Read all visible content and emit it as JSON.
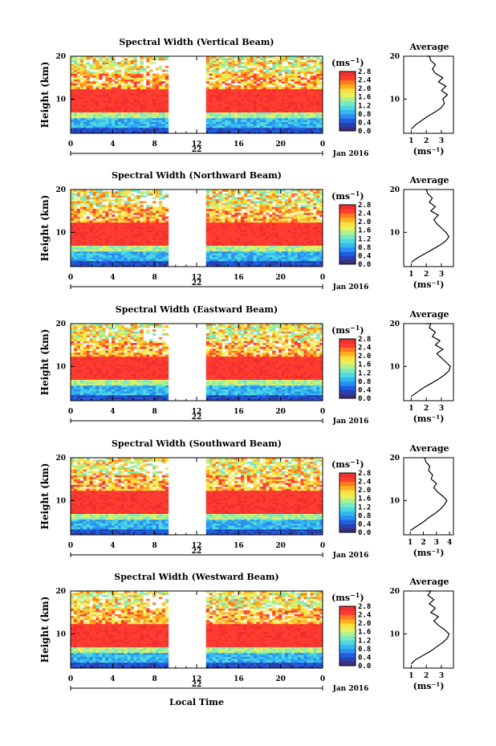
{
  "figure": {
    "xlabel": "Local Time",
    "date_label": "Jan 2016",
    "xticks": [
      "0",
      "4",
      "8",
      "12",
      "16",
      "20",
      "0"
    ],
    "day_label": "22",
    "colorbar_unit": "(ms",
    "colorbar_unit_exp": "−1",
    "colorbar_unit_close": ")",
    "colorbar_ticks": [
      "0.0",
      "0.4",
      "0.8",
      "1.2",
      "1.6",
      "2.0",
      "2.4",
      "2.8"
    ],
    "ylabel": "Height (km)",
    "yticks": [
      "20",
      "10"
    ],
    "avg_title": "Average",
    "colors": [
      "#3b2f7a",
      "#2a3fb0",
      "#1e5fe0",
      "#2a8ff0",
      "#34b8f0",
      "#4fd8e0",
      "#7ae8c0",
      "#b0f090",
      "#e6f060",
      "#ffe040",
      "#ffb020",
      "#ff7a20",
      "#ff3c30",
      "#f03030"
    ]
  },
  "chart_data": [
    {
      "type": "heatmap",
      "title": "Spectral Width (Vertical Beam)",
      "xlabel": "Local Time",
      "ylabel": "Height (km)",
      "xlim": [
        0,
        24
      ],
      "ylim": [
        2,
        20
      ],
      "data_gap_hours": [
        9.3,
        12.8
      ],
      "colorbar_range": [
        0.0,
        2.8
      ],
      "average_profile": {
        "xlabel": "(ms⁻¹)",
        "xticks": [
          "1",
          "2",
          "3"
        ],
        "xlim": [
          0.5,
          3.8
        ],
        "x": [
          1.0,
          1.3,
          1.7,
          2.1,
          2.6,
          3.0,
          3.2,
          3.1,
          3.4,
          3.0,
          3.3,
          2.8,
          3.1,
          2.6,
          2.4,
          2.6,
          2.3,
          2.2,
          2.0
        ],
        "y": [
          3,
          4,
          5,
          6,
          7,
          8,
          9,
          10,
          11,
          12,
          13,
          14,
          15,
          16,
          17,
          18,
          19,
          20,
          20
        ]
      }
    },
    {
      "type": "heatmap",
      "title": "Spectral Width (Northward Beam)",
      "xlabel": "Local Time",
      "ylabel": "Height (km)",
      "xlim": [
        0,
        24
      ],
      "ylim": [
        2,
        20
      ],
      "data_gap_hours": [
        9.3,
        12.8
      ],
      "colorbar_range": [
        0.0,
        2.8
      ],
      "average_profile": {
        "xlabel": "(ms⁻¹)",
        "xticks": [
          "1",
          "2",
          "3"
        ],
        "xlim": [
          0.5,
          3.8
        ],
        "x": [
          1.0,
          1.4,
          1.9,
          2.4,
          2.9,
          3.3,
          3.5,
          3.3,
          3.0,
          2.7,
          2.5,
          2.8,
          2.3,
          2.6,
          2.2,
          2.4,
          2.1,
          2.0,
          1.9
        ],
        "y": [
          3,
          4,
          5,
          6,
          7,
          8,
          9,
          10,
          11,
          12,
          13,
          14,
          15,
          16,
          17,
          18,
          19,
          20,
          20
        ]
      }
    },
    {
      "type": "heatmap",
      "title": "Spectral Width (Eastward Beam)",
      "xlabel": "Local Time",
      "ylabel": "Height (km)",
      "xlim": [
        0,
        24
      ],
      "ylim": [
        2,
        20
      ],
      "data_gap_hours": [
        9.3,
        12.8
      ],
      "colorbar_range": [
        0.0,
        2.8
      ],
      "average_profile": {
        "xlabel": "(ms⁻¹)",
        "xticks": [
          "1",
          "2",
          "3"
        ],
        "xlim": [
          0.5,
          3.8
        ],
        "x": [
          1.0,
          1.4,
          1.8,
          2.3,
          2.8,
          3.2,
          3.5,
          3.6,
          3.3,
          3.0,
          2.7,
          3.1,
          2.6,
          2.9,
          2.4,
          2.6,
          2.2,
          2.3,
          2.0
        ],
        "y": [
          3,
          4,
          5,
          6,
          7,
          8,
          9,
          10,
          11,
          12,
          13,
          14,
          15,
          16,
          17,
          18,
          19,
          20,
          20
        ]
      }
    },
    {
      "type": "heatmap",
      "title": "Spectral Width (Southward Beam)",
      "xlabel": "Local Time",
      "ylabel": "Height (km)",
      "xlim": [
        0,
        24
      ],
      "ylim": [
        2,
        20
      ],
      "data_gap_hours": [
        9.3,
        12.8
      ],
      "colorbar_range": [
        0.0,
        2.8
      ],
      "average_profile": {
        "xlabel": "(ms⁻¹)",
        "xticks": [
          "1",
          "2",
          "3",
          "4"
        ],
        "xlim": [
          0.5,
          4.3
        ],
        "x": [
          1.0,
          1.5,
          2.0,
          2.4,
          2.9,
          3.3,
          3.6,
          3.8,
          3.5,
          3.1,
          2.8,
          3.0,
          2.6,
          2.7,
          2.4,
          2.5,
          2.2,
          2.1,
          2.0
        ],
        "y": [
          3,
          4,
          5,
          6,
          7,
          8,
          9,
          10,
          11,
          12,
          13,
          14,
          15,
          16,
          17,
          18,
          19,
          20,
          20
        ]
      }
    },
    {
      "type": "heatmap",
      "title": "Spectral Width (Westward Beam)",
      "xlabel": "Local Time",
      "ylabel": "Height (km)",
      "xlim": [
        0,
        24
      ],
      "ylim": [
        2,
        20
      ],
      "data_gap_hours": [
        9.3,
        12.8
      ],
      "colorbar_range": [
        0.0,
        2.8
      ],
      "average_profile": {
        "xlabel": "(ms⁻¹)",
        "xticks": [
          "1",
          "2",
          "3"
        ],
        "xlim": [
          0.5,
          3.8
        ],
        "x": [
          1.0,
          1.3,
          1.8,
          2.3,
          2.7,
          3.1,
          3.4,
          3.5,
          3.2,
          2.8,
          2.5,
          2.8,
          2.3,
          2.6,
          2.2,
          2.5,
          2.1,
          2.3,
          2.0
        ],
        "y": [
          3,
          4,
          5,
          6,
          7,
          8,
          9,
          10,
          11,
          12,
          13,
          14,
          15,
          16,
          17,
          18,
          19,
          20,
          20
        ]
      }
    }
  ]
}
